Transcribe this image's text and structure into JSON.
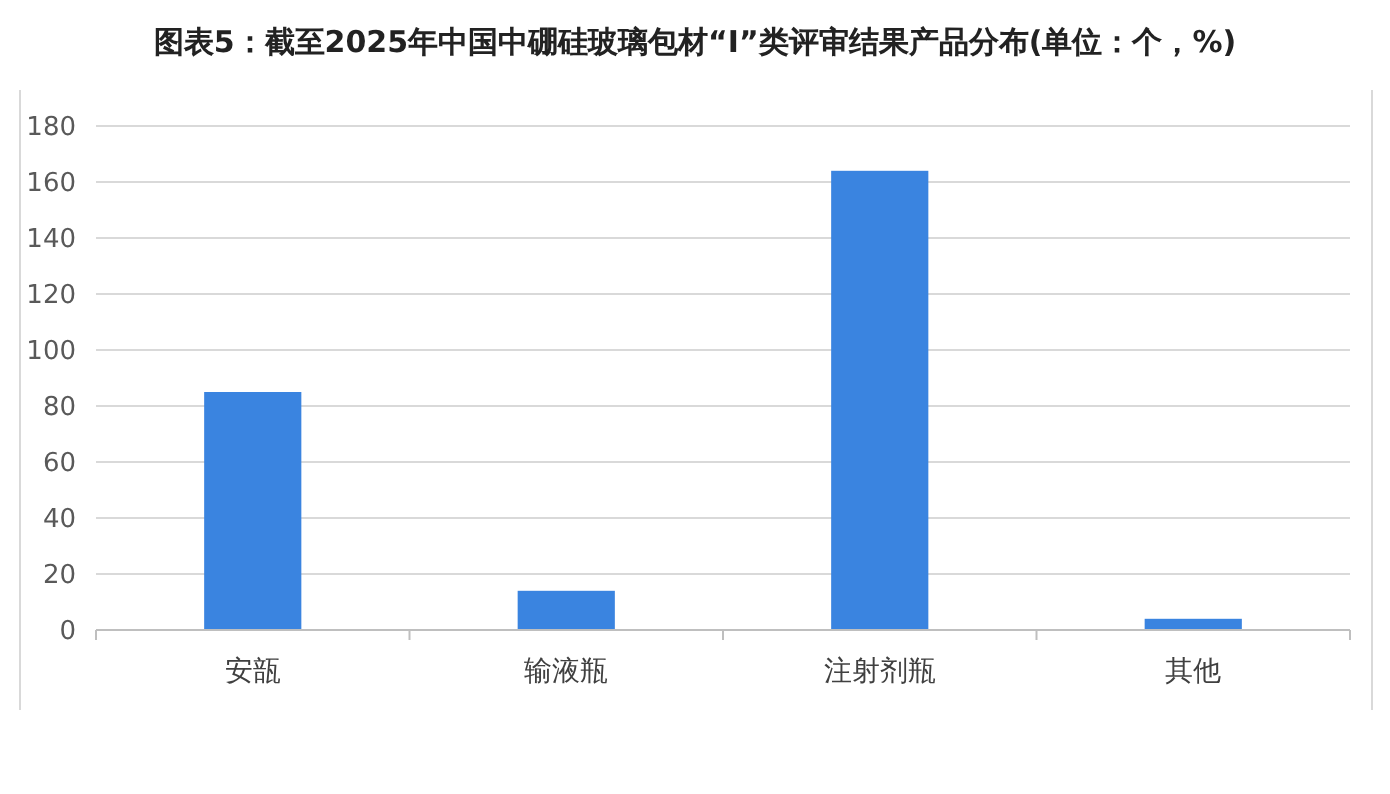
{
  "chart_data": {
    "type": "bar",
    "title": "图表5：截至2025年中国中硼硅玻璃包材“I”类评审结果产品分布(单位：个，%)",
    "categories": [
      "安瓿",
      "输液瓶",
      "注射剂瓶",
      "其他"
    ],
    "values": [
      85,
      14,
      164,
      4
    ],
    "color": "#3a84e0",
    "ylim": [
      0,
      180
    ],
    "yticks": [
      0,
      20,
      40,
      60,
      80,
      100,
      120,
      140,
      160,
      180
    ],
    "grid": "y"
  }
}
